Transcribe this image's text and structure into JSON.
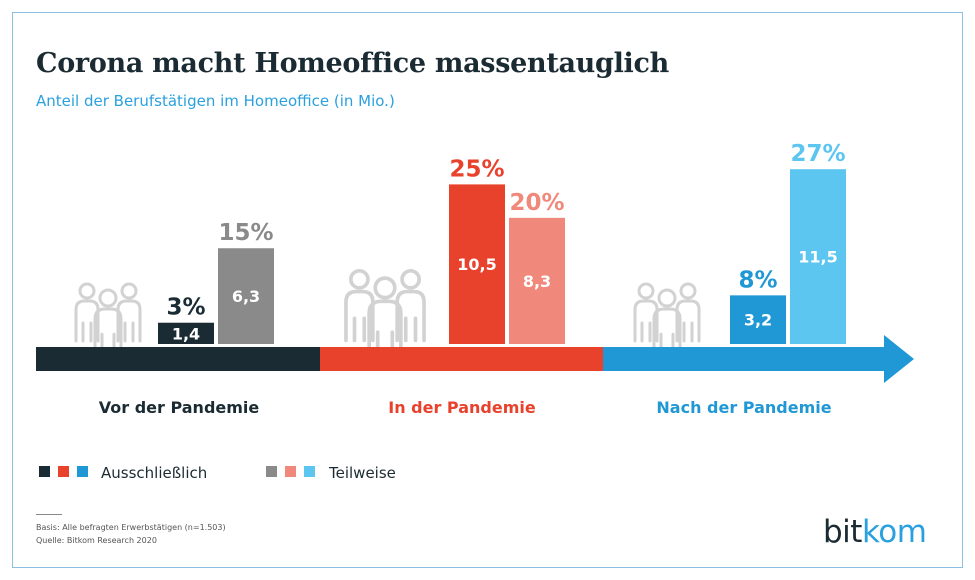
{
  "title": "Corona macht Homeoffice massentauglich",
  "subtitle": "Anteil der Berufstätigen im Homeoffice (in Mio.)",
  "colors": {
    "dark": "#1b2b33",
    "gray": "#8a8a8a",
    "red": "#e8412c",
    "lightred": "#f0897c",
    "blue": "#1f98d5",
    "lightblue": "#5cc6f0",
    "icon": "#d2d2d2",
    "frame": "#8dbfe0"
  },
  "chart_data": {
    "type": "bar",
    "title": "Corona macht Homeoffice massentauglich",
    "subtitle": "Anteil der Berufstätigen im Homeoffice (in Mio.)",
    "unit": "Mio.",
    "categories": [
      "Vor der Pandemie",
      "In der Pandemie",
      "Nach der Pandemie"
    ],
    "series": [
      {
        "name": "Ausschließlich",
        "values": [
          1.4,
          10.5,
          3.2
        ],
        "value_labels": [
          "1,4",
          "10,5",
          "3,2"
        ],
        "percent_labels": [
          "3%",
          "25%",
          "8%"
        ],
        "colors": [
          "#1b2b33",
          "#e8412c",
          "#1f98d5"
        ]
      },
      {
        "name": "Teilweise",
        "values": [
          6.3,
          8.3,
          11.5
        ],
        "value_labels": [
          "6,3",
          "8,3",
          "11,5"
        ],
        "percent_labels": [
          "15%",
          "20%",
          "27%"
        ],
        "colors": [
          "#8a8a8a",
          "#f0897c",
          "#5cc6f0"
        ]
      }
    ],
    "category_colors": [
      "#1b2b33",
      "#e8412c",
      "#1f98d5"
    ],
    "legend": {
      "position": "bottom-left",
      "ausschliesslich": "Ausschließlich",
      "teilweise": "Teilweise"
    }
  },
  "footnote": {
    "basis": "Basis: Alle befragten Erwerbstätigen (n=1.503)",
    "quelle": "Quelle: Bitkom Research 2020"
  },
  "logo": {
    "part1": "bit",
    "part2": "kom"
  }
}
